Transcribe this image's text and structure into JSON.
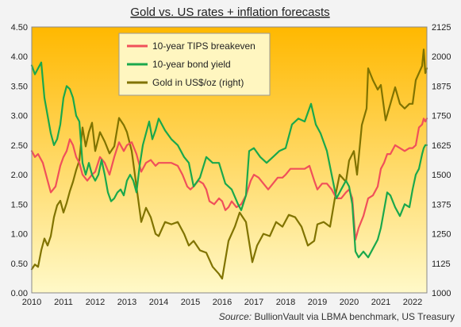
{
  "chart_data": {
    "type": "line",
    "title": "Gold vs. US rates + inflation forecasts",
    "source_label": "Source:",
    "source_text": " BullionVault via LBMA benchmark, US Treasury",
    "x_ticks": [
      "2010",
      "2011",
      "2012",
      "2013",
      "2014",
      "2015",
      "2016",
      "2017",
      "2018",
      "2019",
      "2020",
      "2021",
      "2022"
    ],
    "x_domain": [
      2010.0,
      2022.45
    ],
    "left_axis": {
      "ylim": [
        0,
        4.5
      ],
      "ticks": [
        "0.00",
        "0.50",
        "1.00",
        "1.50",
        "2.00",
        "2.50",
        "3.00",
        "3.50",
        "4.00",
        "4.50"
      ]
    },
    "right_axis": {
      "ylim": [
        1000,
        2125
      ],
      "ticks": [
        "1000",
        "1125",
        "1250",
        "1375",
        "1500",
        "1625",
        "1750",
        "1875",
        "2000",
        "2125"
      ]
    },
    "legend_position": "top-left",
    "colors": {
      "background_top": "#ffb800",
      "background_bottom": "#fff9c8",
      "frame": "#888888"
    },
    "series": [
      {
        "name": "10-year TIPS breakeven",
        "axis": "left",
        "color": "#f0505a",
        "x": [
          2010.0,
          2010.1,
          2010.2,
          2010.35,
          2010.5,
          2010.6,
          2010.75,
          2010.9,
          2011.0,
          2011.1,
          2011.2,
          2011.3,
          2011.4,
          2011.5,
          2011.6,
          2011.75,
          2011.9,
          2012.0,
          2012.15,
          2012.3,
          2012.45,
          2012.6,
          2012.75,
          2012.9,
          2013.0,
          2013.15,
          2013.3,
          2013.45,
          2013.6,
          2013.75,
          2013.9,
          2014.0,
          2014.2,
          2014.4,
          2014.6,
          2014.75,
          2014.9,
          2015.0,
          2015.1,
          2015.25,
          2015.4,
          2015.5,
          2015.6,
          2015.75,
          2015.9,
          2016.0,
          2016.1,
          2016.2,
          2016.3,
          2016.45,
          2016.6,
          2016.75,
          2016.9,
          2017.0,
          2017.15,
          2017.3,
          2017.45,
          2017.6,
          2017.75,
          2017.9,
          2018.0,
          2018.15,
          2018.3,
          2018.45,
          2018.6,
          2018.75,
          2018.9,
          2019.0,
          2019.15,
          2019.3,
          2019.45,
          2019.6,
          2019.75,
          2019.9,
          2020.0,
          2020.1,
          2020.2,
          2020.3,
          2020.45,
          2020.6,
          2020.75,
          2020.9,
          2021.0,
          2021.1,
          2021.2,
          2021.3,
          2021.45,
          2021.6,
          2021.75,
          2021.9,
          2022.0,
          2022.1,
          2022.2,
          2022.3,
          2022.35,
          2022.4,
          2022.45
        ],
        "values": [
          2.4,
          2.3,
          2.35,
          2.2,
          1.9,
          1.7,
          1.8,
          2.15,
          2.3,
          2.4,
          2.6,
          2.5,
          2.3,
          2.2,
          2.0,
          1.9,
          2.0,
          2.05,
          2.3,
          2.2,
          2.0,
          2.3,
          2.55,
          2.4,
          2.5,
          2.55,
          2.35,
          2.05,
          2.2,
          2.25,
          2.15,
          2.2,
          2.2,
          2.2,
          2.15,
          2.0,
          1.8,
          1.75,
          1.8,
          1.9,
          1.85,
          1.75,
          1.55,
          1.5,
          1.6,
          1.55,
          1.4,
          1.45,
          1.55,
          1.45,
          1.5,
          1.65,
          1.9,
          2.0,
          1.95,
          1.85,
          1.75,
          1.85,
          1.95,
          1.95,
          2.0,
          2.1,
          2.1,
          2.1,
          2.1,
          2.15,
          1.9,
          1.75,
          1.85,
          1.85,
          1.75,
          1.6,
          1.6,
          1.7,
          1.75,
          1.6,
          0.9,
          1.1,
          1.3,
          1.6,
          1.65,
          1.8,
          2.1,
          2.2,
          2.35,
          2.35,
          2.5,
          2.45,
          2.4,
          2.45,
          2.45,
          2.5,
          2.8,
          2.85,
          2.95,
          2.9,
          2.95
        ]
      },
      {
        "name": "10-year bond yield",
        "axis": "left",
        "color": "#1aa84c",
        "x": [
          2010.0,
          2010.1,
          2010.2,
          2010.3,
          2010.4,
          2010.5,
          2010.6,
          2010.7,
          2010.8,
          2010.9,
          2011.0,
          2011.1,
          2011.2,
          2011.3,
          2011.4,
          2011.5,
          2011.6,
          2011.7,
          2011.8,
          2011.9,
          2012.0,
          2012.1,
          2012.2,
          2012.3,
          2012.4,
          2012.5,
          2012.6,
          2012.7,
          2012.8,
          2012.9,
          2013.0,
          2013.1,
          2013.2,
          2013.3,
          2013.4,
          2013.5,
          2013.6,
          2013.7,
          2013.8,
          2013.9,
          2014.0,
          2014.2,
          2014.4,
          2014.6,
          2014.8,
          2014.95,
          2015.1,
          2015.3,
          2015.5,
          2015.7,
          2015.9,
          2016.1,
          2016.3,
          2016.5,
          2016.6,
          2016.75,
          2016.85,
          2017.0,
          2017.2,
          2017.4,
          2017.6,
          2017.8,
          2018.0,
          2018.2,
          2018.4,
          2018.6,
          2018.8,
          2018.95,
          2019.1,
          2019.3,
          2019.45,
          2019.6,
          2019.75,
          2019.9,
          2020.0,
          2020.1,
          2020.2,
          2020.3,
          2020.45,
          2020.6,
          2020.75,
          2020.9,
          2021.0,
          2021.1,
          2021.2,
          2021.3,
          2021.45,
          2021.6,
          2021.75,
          2021.9,
          2022.0,
          2022.1,
          2022.2,
          2022.3,
          2022.35,
          2022.4,
          2022.45
        ],
        "values": [
          3.85,
          3.7,
          3.8,
          3.9,
          3.3,
          3.0,
          2.7,
          2.5,
          2.6,
          2.85,
          3.3,
          3.5,
          3.45,
          3.3,
          3.0,
          2.9,
          2.2,
          2.0,
          2.2,
          2.0,
          1.9,
          2.0,
          2.25,
          2.0,
          1.7,
          1.55,
          1.6,
          1.7,
          1.75,
          1.65,
          1.9,
          2.0,
          1.9,
          1.7,
          2.15,
          2.5,
          2.7,
          2.9,
          2.6,
          2.75,
          2.95,
          2.75,
          2.6,
          2.5,
          2.3,
          2.2,
          1.8,
          1.95,
          2.3,
          2.2,
          2.2,
          1.85,
          1.75,
          1.5,
          1.4,
          1.65,
          2.4,
          2.45,
          2.3,
          2.2,
          2.3,
          2.4,
          2.45,
          2.85,
          2.95,
          2.9,
          3.2,
          2.85,
          2.7,
          2.4,
          2.0,
          1.6,
          1.75,
          1.9,
          1.8,
          1.5,
          0.7,
          0.6,
          0.7,
          0.6,
          0.75,
          0.9,
          1.1,
          1.4,
          1.7,
          1.65,
          1.45,
          1.3,
          1.5,
          1.45,
          1.75,
          2.0,
          2.1,
          2.35,
          2.45,
          2.5,
          2.5
        ]
      },
      {
        "name": "Gold in US$/oz (right)",
        "axis": "right",
        "color": "#807300",
        "x": [
          2010.0,
          2010.1,
          2010.2,
          2010.3,
          2010.4,
          2010.5,
          2010.6,
          2010.7,
          2010.8,
          2010.9,
          2011.0,
          2011.1,
          2011.2,
          2011.3,
          2011.4,
          2011.5,
          2011.6,
          2011.7,
          2011.8,
          2011.9,
          2012.0,
          2012.15,
          2012.3,
          2012.45,
          2012.6,
          2012.75,
          2012.9,
          2013.0,
          2013.15,
          2013.3,
          2013.45,
          2013.6,
          2013.75,
          2013.9,
          2014.0,
          2014.2,
          2014.4,
          2014.6,
          2014.8,
          2014.95,
          2015.1,
          2015.3,
          2015.5,
          2015.7,
          2015.9,
          2016.0,
          2016.2,
          2016.4,
          2016.55,
          2016.75,
          2016.95,
          2017.1,
          2017.3,
          2017.5,
          2017.7,
          2017.9,
          2018.1,
          2018.3,
          2018.5,
          2018.7,
          2018.9,
          2019.0,
          2019.2,
          2019.4,
          2019.55,
          2019.7,
          2019.9,
          2020.0,
          2020.15,
          2020.25,
          2020.4,
          2020.55,
          2020.6,
          2020.75,
          2020.9,
          2021.0,
          2021.15,
          2021.3,
          2021.45,
          2021.6,
          2021.75,
          2021.9,
          2022.0,
          2022.1,
          2022.2,
          2022.3,
          2022.35,
          2022.4,
          2022.45
        ],
        "values": [
          1100,
          1120,
          1110,
          1180,
          1230,
          1200,
          1240,
          1320,
          1370,
          1390,
          1340,
          1380,
          1430,
          1470,
          1520,
          1560,
          1700,
          1620,
          1680,
          1720,
          1600,
          1680,
          1640,
          1590,
          1620,
          1740,
          1710,
          1680,
          1600,
          1450,
          1300,
          1360,
          1320,
          1250,
          1240,
          1300,
          1290,
          1300,
          1250,
          1200,
          1220,
          1180,
          1170,
          1110,
          1080,
          1060,
          1220,
          1280,
          1340,
          1300,
          1130,
          1200,
          1250,
          1240,
          1300,
          1280,
          1330,
          1320,
          1280,
          1200,
          1220,
          1290,
          1300,
          1280,
          1400,
          1500,
          1470,
          1560,
          1600,
          1500,
          1710,
          1780,
          1950,
          1900,
          1860,
          1880,
          1730,
          1800,
          1870,
          1800,
          1780,
          1800,
          1800,
          1900,
          1930,
          1960,
          2030,
          1930,
          1950
        ]
      }
    ]
  }
}
